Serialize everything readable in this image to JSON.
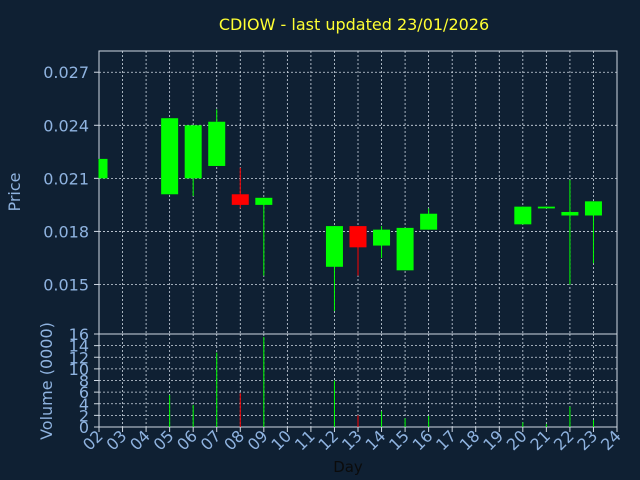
{
  "chart_data": {
    "type": "candlestick",
    "title": "CDIOW - last updated 23/01/2026",
    "xlabel": "Day",
    "ylabel_price": "Price",
    "ylabel_volume": "Volume (0000)",
    "days": [
      "02",
      "03",
      "04",
      "05",
      "06",
      "07",
      "08",
      "09",
      "10",
      "11",
      "12",
      "13",
      "14",
      "15",
      "16",
      "17",
      "18",
      "19",
      "20",
      "21",
      "22",
      "23",
      "24"
    ],
    "price_ticks": [
      "0.015",
      "0.018",
      "0.021",
      "0.024",
      "0.027"
    ],
    "price_tick_values": [
      0.015,
      0.018,
      0.021,
      0.024,
      0.027
    ],
    "volume_ticks": [
      "0",
      "2",
      "4",
      "6",
      "8",
      "10",
      "12",
      "14",
      "16"
    ],
    "volume_tick_values": [
      0,
      2,
      4,
      6,
      8,
      10,
      12,
      14,
      16
    ],
    "price_range": [
      0.0122,
      0.0282
    ],
    "volume_range": [
      0,
      16
    ],
    "grid": true,
    "candles": [
      {
        "day": "02",
        "open": 0.021,
        "high": 0.0221,
        "low": 0.021,
        "close": 0.0221,
        "volume": 0.0,
        "color": "#00ff00"
      },
      {
        "day": "05",
        "open": 0.0201,
        "high": 0.0244,
        "low": 0.0201,
        "close": 0.0244,
        "volume": 5.5,
        "color": "#00ff00"
      },
      {
        "day": "06",
        "open": 0.021,
        "high": 0.024,
        "low": 0.02,
        "close": 0.024,
        "volume": 3.8,
        "color": "#00ff00"
      },
      {
        "day": "07",
        "open": 0.0217,
        "high": 0.0249,
        "low": 0.0217,
        "close": 0.0242,
        "volume": 12.8,
        "color": "#00ff00"
      },
      {
        "day": "08",
        "open": 0.0201,
        "high": 0.0216,
        "low": 0.0193,
        "close": 0.0195,
        "volume": 5.8,
        "color": "#ff0000"
      },
      {
        "day": "09",
        "open": 0.0195,
        "high": 0.0199,
        "low": 0.0155,
        "close": 0.0199,
        "volume": 15.5,
        "color": "#00ff00"
      },
      {
        "day": "12",
        "open": 0.016,
        "high": 0.0183,
        "low": 0.0135,
        "close": 0.0183,
        "volume": 8.0,
        "color": "#00ff00"
      },
      {
        "day": "13",
        "open": 0.0183,
        "high": 0.0183,
        "low": 0.0155,
        "close": 0.0171,
        "volume": 2.0,
        "color": "#ff0000"
      },
      {
        "day": "14",
        "open": 0.0172,
        "high": 0.0183,
        "low": 0.0165,
        "close": 0.0181,
        "volume": 2.7,
        "color": "#00ff00"
      },
      {
        "day": "15",
        "open": 0.0158,
        "high": 0.0182,
        "low": 0.0158,
        "close": 0.0182,
        "volume": 1.5,
        "color": "#00ff00"
      },
      {
        "day": "16",
        "open": 0.0181,
        "high": 0.0193,
        "low": 0.0181,
        "close": 0.019,
        "volume": 1.9,
        "color": "#00ff00"
      },
      {
        "day": "20",
        "open": 0.0184,
        "high": 0.0194,
        "low": 0.0184,
        "close": 0.0194,
        "volume": 0.8,
        "color": "#00ff00"
      },
      {
        "day": "21",
        "open": 0.0193,
        "high": 0.0194,
        "low": 0.0193,
        "close": 0.0194,
        "volume": 0.5,
        "color": "#00ff00"
      },
      {
        "day": "22",
        "open": 0.0189,
        "high": 0.0209,
        "low": 0.015,
        "close": 0.0191,
        "volume": 3.5,
        "color": "#00ff00"
      },
      {
        "day": "23",
        "open": 0.0189,
        "high": 0.0197,
        "low": 0.0162,
        "close": 0.0197,
        "volume": 1.2,
        "color": "#00ff00"
      }
    ]
  },
  "colors": {
    "background": "#0f2033",
    "title": "#ffff33",
    "tick": "#8fb3e0",
    "grid": "#cfd8e3",
    "axis": "#cfd8e3",
    "up": "#00ff00",
    "down": "#ff0000"
  }
}
